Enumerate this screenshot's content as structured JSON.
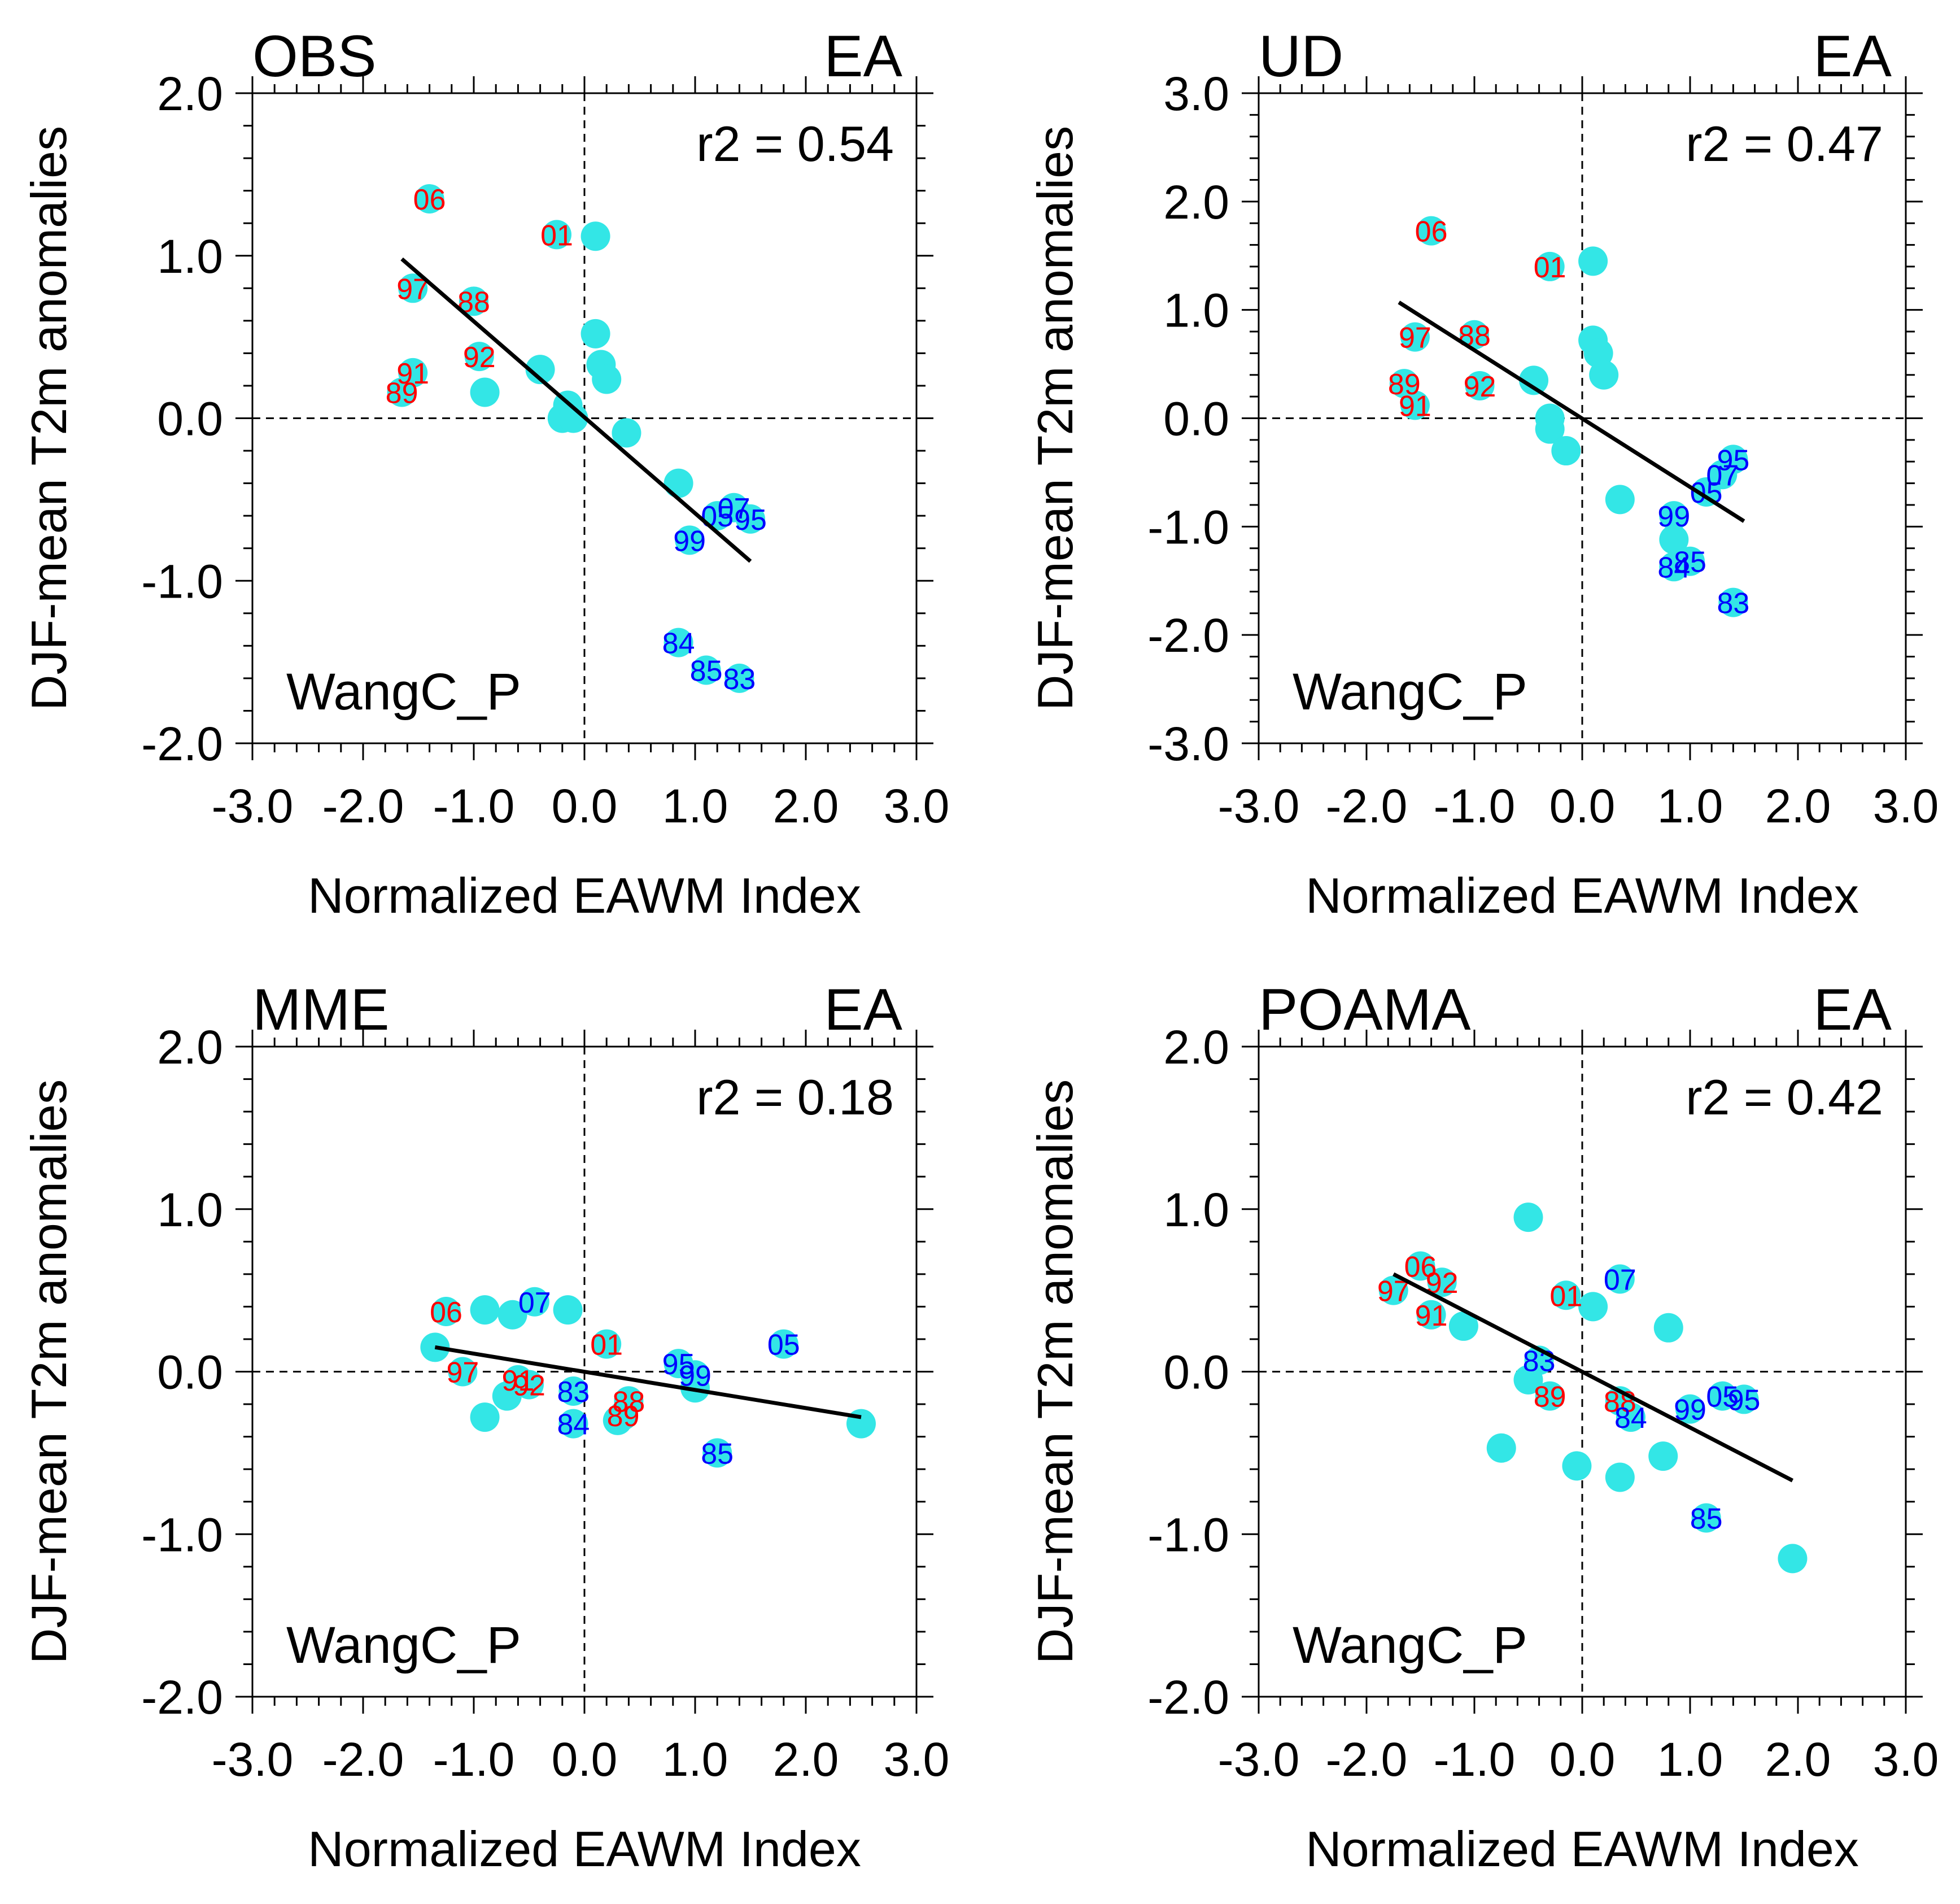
{
  "colors": {
    "marker": "#33e6e6",
    "positive_year": "#ff0000",
    "negative_year": "#0000ff",
    "axes": "#000000",
    "regression": "#000000",
    "background": "#ffffff"
  },
  "chart_data": [
    {
      "type": "scatter",
      "title": "OBS",
      "region": "EA",
      "stat": "r2 = 0.54",
      "index_name": "WangC_P",
      "xlabel": "Normalized EAWM Index",
      "ylabel": "DJF-mean T2m anomalies",
      "xlim": [
        -3.0,
        3.0
      ],
      "ylim": [
        -2.0,
        2.0
      ],
      "xticks": [
        "-3.0",
        "-2.0",
        "-1.0",
        "0.0",
        "1.0",
        "2.0",
        "3.0"
      ],
      "yticks": [
        "-2.0",
        "-1.0",
        "0.0",
        "1.0",
        "2.0"
      ],
      "regression": {
        "x": [
          -1.65,
          1.5
        ],
        "y": [
          0.98,
          -0.88
        ]
      },
      "points": [
        {
          "x": -1.4,
          "y": 1.35,
          "label": "06",
          "sign": "pos"
        },
        {
          "x": -0.25,
          "y": 1.13,
          "label": "01",
          "sign": "pos"
        },
        {
          "x": 0.1,
          "y": 1.12,
          "label": "",
          "sign": "pos"
        },
        {
          "x": -1.55,
          "y": 0.8,
          "label": "97",
          "sign": "pos"
        },
        {
          "x": -1.0,
          "y": 0.72,
          "label": "88",
          "sign": "pos"
        },
        {
          "x": 0.1,
          "y": 0.52,
          "label": "",
          "sign": "pos"
        },
        {
          "x": -0.95,
          "y": 0.38,
          "label": "92",
          "sign": "pos"
        },
        {
          "x": 0.15,
          "y": 0.33,
          "label": "",
          "sign": "pos"
        },
        {
          "x": -0.4,
          "y": 0.3,
          "label": "",
          "sign": "pos"
        },
        {
          "x": -1.55,
          "y": 0.28,
          "label": "91",
          "sign": "pos"
        },
        {
          "x": 0.2,
          "y": 0.24,
          "label": "",
          "sign": "pos"
        },
        {
          "x": -1.65,
          "y": 0.16,
          "label": "89",
          "sign": "pos"
        },
        {
          "x": -0.9,
          "y": 0.16,
          "label": "",
          "sign": "pos"
        },
        {
          "x": -0.15,
          "y": 0.08,
          "label": "",
          "sign": "pos"
        },
        {
          "x": -0.2,
          "y": 0.0,
          "label": "",
          "sign": "pos"
        },
        {
          "x": -0.1,
          "y": 0.0,
          "label": "",
          "sign": "pos"
        },
        {
          "x": 0.38,
          "y": -0.09,
          "label": "",
          "sign": "pos"
        },
        {
          "x": 0.85,
          "y": -0.4,
          "label": "",
          "sign": "pos"
        },
        {
          "x": 1.35,
          "y": -0.55,
          "label": "07",
          "sign": "neg"
        },
        {
          "x": 1.2,
          "y": -0.6,
          "label": "05",
          "sign": "neg"
        },
        {
          "x": 1.5,
          "y": -0.62,
          "label": "95",
          "sign": "neg"
        },
        {
          "x": 0.95,
          "y": -0.75,
          "label": "99",
          "sign": "neg"
        },
        {
          "x": 0.85,
          "y": -1.38,
          "label": "84",
          "sign": "neg"
        },
        {
          "x": 1.1,
          "y": -1.55,
          "label": "85",
          "sign": "neg"
        },
        {
          "x": 1.4,
          "y": -1.6,
          "label": "83",
          "sign": "neg"
        }
      ]
    },
    {
      "type": "scatter",
      "title": "UD",
      "region": "EA",
      "stat": "r2 = 0.47",
      "index_name": "WangC_P",
      "xlabel": "Normalized EAWM Index",
      "ylabel": "DJF-mean T2m anomalies",
      "xlim": [
        -3.0,
        3.0
      ],
      "ylim": [
        -3.0,
        3.0
      ],
      "xticks": [
        "-3.0",
        "-2.0",
        "-1.0",
        "0.0",
        "1.0",
        "2.0",
        "3.0"
      ],
      "yticks": [
        "-3.0",
        "-2.0",
        "-1.0",
        "0.0",
        "1.0",
        "2.0",
        "3.0"
      ],
      "regression": {
        "x": [
          -1.7,
          1.5
        ],
        "y": [
          1.07,
          -0.95
        ]
      },
      "points": [
        {
          "x": -1.4,
          "y": 1.73,
          "label": "06",
          "sign": "pos"
        },
        {
          "x": 0.1,
          "y": 1.45,
          "label": "",
          "sign": "pos"
        },
        {
          "x": -0.3,
          "y": 1.4,
          "label": "01",
          "sign": "pos"
        },
        {
          "x": -1.55,
          "y": 0.75,
          "label": "97",
          "sign": "pos"
        },
        {
          "x": -1.0,
          "y": 0.77,
          "label": "88",
          "sign": "pos"
        },
        {
          "x": 0.1,
          "y": 0.72,
          "label": "",
          "sign": "pos"
        },
        {
          "x": 0.15,
          "y": 0.6,
          "label": "",
          "sign": "pos"
        },
        {
          "x": 0.2,
          "y": 0.4,
          "label": "",
          "sign": "pos"
        },
        {
          "x": -0.45,
          "y": 0.35,
          "label": "",
          "sign": "pos"
        },
        {
          "x": -1.65,
          "y": 0.32,
          "label": "89",
          "sign": "pos"
        },
        {
          "x": -0.95,
          "y": 0.3,
          "label": "92",
          "sign": "pos"
        },
        {
          "x": -1.55,
          "y": 0.12,
          "label": "91",
          "sign": "pos"
        },
        {
          "x": -0.3,
          "y": 0.0,
          "label": "",
          "sign": "pos"
        },
        {
          "x": -0.3,
          "y": -0.1,
          "label": "",
          "sign": "pos"
        },
        {
          "x": -0.15,
          "y": -0.3,
          "label": "",
          "sign": "pos"
        },
        {
          "x": 0.35,
          "y": -0.75,
          "label": "",
          "sign": "pos"
        },
        {
          "x": 1.4,
          "y": -0.38,
          "label": "95",
          "sign": "neg"
        },
        {
          "x": 1.3,
          "y": -0.52,
          "label": "07",
          "sign": "neg"
        },
        {
          "x": 1.15,
          "y": -0.68,
          "label": "05",
          "sign": "neg"
        },
        {
          "x": 0.85,
          "y": -0.9,
          "label": "99",
          "sign": "neg"
        },
        {
          "x": 0.85,
          "y": -1.12,
          "label": "",
          "sign": "pos"
        },
        {
          "x": 1.0,
          "y": -1.32,
          "label": "85",
          "sign": "neg"
        },
        {
          "x": 0.85,
          "y": -1.37,
          "label": "84",
          "sign": "neg"
        },
        {
          "x": 1.4,
          "y": -1.7,
          "label": "83",
          "sign": "neg"
        }
      ]
    },
    {
      "type": "scatter",
      "title": "MME",
      "region": "EA",
      "stat": "r2 = 0.18",
      "index_name": "WangC_P",
      "xlabel": "Normalized EAWM Index",
      "ylabel": "DJF-mean T2m anomalies",
      "xlim": [
        -3.0,
        3.0
      ],
      "ylim": [
        -2.0,
        2.0
      ],
      "xticks": [
        "-3.0",
        "-2.0",
        "-1.0",
        "0.0",
        "1.0",
        "2.0",
        "3.0"
      ],
      "yticks": [
        "-2.0",
        "-1.0",
        "0.0",
        "1.0",
        "2.0"
      ],
      "regression": {
        "x": [
          -1.35,
          2.5
        ],
        "y": [
          0.15,
          -0.28
        ]
      },
      "points": [
        {
          "x": -1.25,
          "y": 0.37,
          "label": "06",
          "sign": "pos"
        },
        {
          "x": -0.9,
          "y": 0.38,
          "label": "",
          "sign": "pos"
        },
        {
          "x": -0.65,
          "y": 0.35,
          "label": "",
          "sign": "pos"
        },
        {
          "x": -0.45,
          "y": 0.43,
          "label": "07",
          "sign": "neg"
        },
        {
          "x": -0.15,
          "y": 0.38,
          "label": "",
          "sign": "pos"
        },
        {
          "x": 0.2,
          "y": 0.17,
          "label": "01",
          "sign": "pos"
        },
        {
          "x": 1.8,
          "y": 0.17,
          "label": "05",
          "sign": "neg"
        },
        {
          "x": -1.35,
          "y": 0.15,
          "label": "",
          "sign": "pos"
        },
        {
          "x": 0.85,
          "y": 0.05,
          "label": "95",
          "sign": "neg"
        },
        {
          "x": -1.1,
          "y": 0.0,
          "label": "97",
          "sign": "pos"
        },
        {
          "x": 1.0,
          "y": -0.02,
          "label": "99",
          "sign": "neg"
        },
        {
          "x": -0.6,
          "y": -0.05,
          "label": "91",
          "sign": "pos"
        },
        {
          "x": -0.5,
          "y": -0.08,
          "label": "92",
          "sign": "pos"
        },
        {
          "x": 1.0,
          "y": -0.1,
          "label": "",
          "sign": "pos"
        },
        {
          "x": -0.1,
          "y": -0.12,
          "label": "83",
          "sign": "neg"
        },
        {
          "x": -0.7,
          "y": -0.15,
          "label": "",
          "sign": "pos"
        },
        {
          "x": 0.4,
          "y": -0.18,
          "label": "88",
          "sign": "pos"
        },
        {
          "x": -0.9,
          "y": -0.28,
          "label": "",
          "sign": "pos"
        },
        {
          "x": 0.35,
          "y": -0.27,
          "label": "89",
          "sign": "pos"
        },
        {
          "x": 0.3,
          "y": -0.3,
          "label": "",
          "sign": "pos"
        },
        {
          "x": -0.1,
          "y": -0.32,
          "label": "84",
          "sign": "neg"
        },
        {
          "x": 2.5,
          "y": -0.32,
          "label": "",
          "sign": "pos"
        },
        {
          "x": 1.2,
          "y": -0.5,
          "label": "85",
          "sign": "neg"
        }
      ]
    },
    {
      "type": "scatter",
      "title": "POAMA",
      "region": "EA",
      "stat": "r2 = 0.42",
      "index_name": "WangC_P",
      "xlabel": "Normalized EAWM Index",
      "ylabel": "DJF-mean T2m anomalies",
      "xlim": [
        -3.0,
        3.0
      ],
      "ylim": [
        -2.0,
        2.0
      ],
      "xticks": [
        "-3.0",
        "-2.0",
        "-1.0",
        "0.0",
        "1.0",
        "2.0",
        "3.0"
      ],
      "yticks": [
        "-2.0",
        "-1.0",
        "0.0",
        "1.0",
        "2.0"
      ],
      "regression": {
        "x": [
          -1.75,
          1.95
        ],
        "y": [
          0.6,
          -0.67
        ]
      },
      "points": [
        {
          "x": -0.5,
          "y": 0.95,
          "label": "",
          "sign": "pos"
        },
        {
          "x": -1.5,
          "y": 0.65,
          "label": "06",
          "sign": "pos"
        },
        {
          "x": -1.3,
          "y": 0.55,
          "label": "92",
          "sign": "pos"
        },
        {
          "x": 0.35,
          "y": 0.57,
          "label": "07",
          "sign": "neg"
        },
        {
          "x": -1.75,
          "y": 0.5,
          "label": "97",
          "sign": "pos"
        },
        {
          "x": -0.15,
          "y": 0.47,
          "label": "01",
          "sign": "pos"
        },
        {
          "x": 0.1,
          "y": 0.4,
          "label": "",
          "sign": "pos"
        },
        {
          "x": -1.4,
          "y": 0.35,
          "label": "91",
          "sign": "pos"
        },
        {
          "x": -1.1,
          "y": 0.28,
          "label": "",
          "sign": "pos"
        },
        {
          "x": 0.8,
          "y": 0.27,
          "label": "",
          "sign": "pos"
        },
        {
          "x": -0.4,
          "y": 0.07,
          "label": "83",
          "sign": "neg"
        },
        {
          "x": -0.5,
          "y": -0.05,
          "label": "",
          "sign": "pos"
        },
        {
          "x": -0.3,
          "y": -0.15,
          "label": "89",
          "sign": "pos"
        },
        {
          "x": 0.35,
          "y": -0.18,
          "label": "88",
          "sign": "pos"
        },
        {
          "x": 1.3,
          "y": -0.15,
          "label": "05",
          "sign": "neg"
        },
        {
          "x": 1.5,
          "y": -0.17,
          "label": "95",
          "sign": "neg"
        },
        {
          "x": 1.0,
          "y": -0.23,
          "label": "99",
          "sign": "neg"
        },
        {
          "x": 0.45,
          "y": -0.28,
          "label": "84",
          "sign": "neg"
        },
        {
          "x": -0.75,
          "y": -0.47,
          "label": "",
          "sign": "pos"
        },
        {
          "x": 0.75,
          "y": -0.52,
          "label": "",
          "sign": "pos"
        },
        {
          "x": -0.05,
          "y": -0.58,
          "label": "",
          "sign": "pos"
        },
        {
          "x": 0.35,
          "y": -0.65,
          "label": "",
          "sign": "pos"
        },
        {
          "x": 1.15,
          "y": -0.9,
          "label": "85",
          "sign": "neg"
        },
        {
          "x": 1.95,
          "y": -1.15,
          "label": "",
          "sign": "pos"
        }
      ]
    }
  ]
}
